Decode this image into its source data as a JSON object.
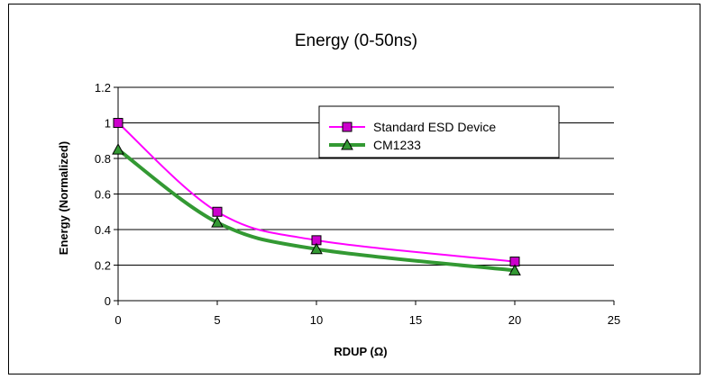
{
  "chart_data": {
    "type": "line",
    "title": "Energy (0-50ns)",
    "xlabel": "RDUP (Ω)",
    "ylabel": "Energy (Normalized)",
    "xlim": [
      0,
      25
    ],
    "ylim": [
      0,
      1.2
    ],
    "xticks": [
      "0",
      "5",
      "10",
      "15",
      "20",
      "25"
    ],
    "yticks": [
      "0",
      "0.2",
      "0.4",
      "0.6",
      "0.8",
      "1",
      "1.2"
    ],
    "grid": "horizontal",
    "legend_position": "top-right",
    "series": [
      {
        "name": "Standard ESD Device",
        "color": "#ff00ff",
        "marker": "square",
        "marker_color": "#cc00cc",
        "x": [
          0,
          5,
          10,
          20
        ],
        "y": [
          1.0,
          0.5,
          0.34,
          0.22
        ]
      },
      {
        "name": "CM1233",
        "color": "#339933",
        "marker": "triangle",
        "marker_color": "#339933",
        "x": [
          0,
          5,
          10,
          20
        ],
        "y": [
          0.85,
          0.44,
          0.29,
          0.17
        ]
      }
    ]
  }
}
